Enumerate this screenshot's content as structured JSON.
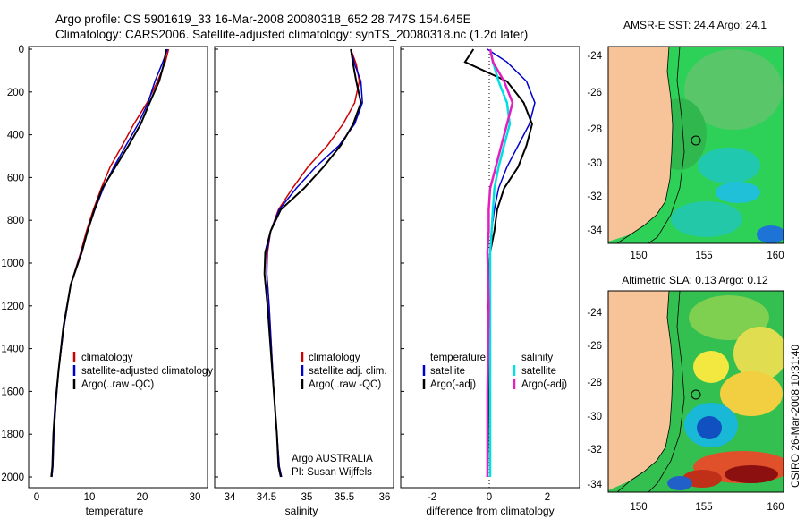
{
  "header": {
    "line1": "Argo profile: CS 5901619_33 16-Mar-2008 20080318_652 28.747S 154.645E",
    "line2": "Climatology: CARS2006. Satellite-adjusted climatology: synTS_20080318.nc (1.2d later)"
  },
  "side_label": "CSIRO 26-Mar-2008 10:31:40",
  "colors": {
    "climatology": "#cc0000",
    "satellite": "#0000cc",
    "argo": "#000000",
    "sal_sat": "#00e0e0",
    "sal_argo": "#e020c0",
    "land": "#f7c49a"
  },
  "panels": {
    "temp": {
      "xlabel": "temperature",
      "xticks": [
        "0",
        "10",
        "20",
        "30"
      ],
      "legend": [
        "climatology",
        "satellite-adjusted climatology",
        "Argo(..raw -QC)"
      ]
    },
    "sal": {
      "xlabel": "salinity",
      "xticks": [
        "34",
        "34.5",
        "35",
        "35.5",
        "36"
      ],
      "legend": [
        "climatology",
        "satellite adj. clim.",
        "Argo(..raw -QC)"
      ],
      "note1": "Argo AUSTRALIA",
      "note2": "PI: Susan Wijffels"
    },
    "diff": {
      "xlabel": "difference from climatology",
      "xticks": [
        "-2",
        "0",
        "2"
      ],
      "legend_t_head": "temperature",
      "legend_t": [
        "satellite",
        "Argo(-adj)"
      ],
      "legend_s_head": "salinity",
      "legend_s": [
        "satellite",
        "Argo(-adj)"
      ]
    },
    "depth_ticks": [
      "0",
      "200",
      "400",
      "600",
      "800",
      "1000",
      "1200",
      "1400",
      "1600",
      "1800",
      "2000"
    ]
  },
  "maps": {
    "sst_title": "AMSR-E SST: 24.4 Argo: 24.1",
    "sla_title": "Altimetric SLA: 0.13 Argo: 0.12",
    "lat_ticks": [
      "-24",
      "-26",
      "-28",
      "-30",
      "-32",
      "-34"
    ],
    "lon_ticks": [
      "150",
      "155",
      "160"
    ]
  },
  "chart_data": [
    {
      "type": "line",
      "title": "",
      "xlabel": "temperature",
      "ylabel": "",
      "xlim": [
        -2,
        32
      ],
      "ylim": [
        2050,
        0
      ],
      "series": [
        {
          "name": "climatology",
          "x": [
            24.6,
            24.0,
            22.5,
            20.5,
            18.0,
            15.8,
            13.5,
            11.8,
            10.3,
            9.0,
            7.9,
            6.0,
            4.7,
            3.7,
            3.2,
            2.8,
            2.6,
            2.4
          ],
          "y": [
            0,
            60,
            150,
            250,
            350,
            450,
            550,
            650,
            750,
            850,
            950,
            1100,
            1300,
            1500,
            1650,
            1800,
            1950,
            2000
          ]
        },
        {
          "name": "satellite-adjusted climatology",
          "x": [
            24.4,
            23.5,
            22.0,
            20.7,
            18.8,
            16.5,
            14.2,
            12.2,
            10.6,
            9.2,
            8.0,
            6.0,
            4.7,
            3.7,
            3.2,
            2.8,
            2.6,
            2.4
          ],
          "y": [
            0,
            60,
            150,
            250,
            350,
            450,
            550,
            650,
            750,
            850,
            950,
            1100,
            1300,
            1500,
            1650,
            1800,
            1950,
            2000
          ]
        },
        {
          "name": "Argo(..raw -QC)",
          "x": [
            24.1,
            23.8,
            22.8,
            21.0,
            19.3,
            17.0,
            14.5,
            12.0,
            10.5,
            9.2,
            8.1,
            6.0,
            4.6,
            3.7,
            3.1,
            2.7,
            2.5,
            2.3
          ],
          "y": [
            0,
            60,
            150,
            250,
            350,
            450,
            550,
            650,
            750,
            850,
            950,
            1100,
            1300,
            1500,
            1650,
            1800,
            1950,
            2000
          ]
        }
      ]
    },
    {
      "type": "line",
      "title": "",
      "xlabel": "salinity",
      "ylabel": "",
      "xlim": [
        33.8,
        36.1
      ],
      "ylim": [
        2050,
        0
      ],
      "series": [
        {
          "name": "climatology",
          "x": [
            35.55,
            35.62,
            35.66,
            35.6,
            35.45,
            35.25,
            35.0,
            34.8,
            34.62,
            34.52,
            34.48,
            34.47,
            34.5,
            34.53,
            34.56,
            34.6,
            34.63,
            34.66
          ],
          "y": [
            0,
            70,
            150,
            250,
            350,
            450,
            550,
            650,
            750,
            850,
            950,
            1050,
            1200,
            1400,
            1600,
            1800,
            1950,
            2000
          ]
        },
        {
          "name": "satellite adj. clim.",
          "x": [
            35.55,
            35.6,
            35.68,
            35.7,
            35.6,
            35.4,
            35.1,
            34.85,
            34.63,
            34.52,
            34.47,
            34.47,
            34.5,
            34.53,
            34.56,
            34.6,
            34.63,
            34.66
          ],
          "y": [
            0,
            70,
            150,
            250,
            350,
            450,
            550,
            650,
            750,
            850,
            950,
            1050,
            1200,
            1400,
            1600,
            1800,
            1950,
            2000
          ]
        },
        {
          "name": "Argo(..raw -QC)",
          "x": [
            35.55,
            35.58,
            35.62,
            35.68,
            35.58,
            35.42,
            35.2,
            34.95,
            34.65,
            34.52,
            34.45,
            34.44,
            34.48,
            34.52,
            34.56,
            34.6,
            34.62,
            34.65
          ],
          "y": [
            0,
            70,
            150,
            250,
            350,
            450,
            550,
            650,
            750,
            850,
            950,
            1050,
            1200,
            1400,
            1600,
            1800,
            1950,
            2000
          ]
        }
      ]
    },
    {
      "type": "line",
      "title": "",
      "xlabel": "difference from climatology",
      "ylabel": "",
      "xlim": [
        -3.2,
        3.2
      ],
      "ylim": [
        2050,
        0
      ],
      "series": [
        {
          "name": "temperature satellite",
          "x": [
            -0.1,
            0.6,
            1.3,
            1.6,
            1.4,
            1.0,
            0.6,
            0.3,
            0.15,
            0.05,
            0.0,
            0.0,
            0.0,
            0.0
          ],
          "y": [
            0,
            60,
            150,
            250,
            350,
            450,
            550,
            650,
            750,
            850,
            950,
            1200,
            1600,
            2000
          ]
        },
        {
          "name": "temperature Argo(-adj)",
          "x": [
            -0.6,
            -0.9,
            0.6,
            1.2,
            1.5,
            1.3,
            1.0,
            0.5,
            0.25,
            0.15,
            0.0,
            -0.1,
            -0.05,
            -0.1
          ],
          "y": [
            0,
            60,
            150,
            250,
            350,
            450,
            550,
            650,
            750,
            850,
            950,
            1200,
            1600,
            2000
          ]
        },
        {
          "name": "salinity satellite",
          "x": [
            0.0,
            0.1,
            0.3,
            0.6,
            0.7,
            0.5,
            0.3,
            0.15,
            0.1,
            0.05,
            0.0,
            0.0,
            0.0,
            0.0
          ],
          "y": [
            0,
            60,
            150,
            250,
            350,
            450,
            550,
            650,
            750,
            850,
            950,
            1200,
            1600,
            2000
          ]
        },
        {
          "name": "salinity Argo(-adj)",
          "x": [
            0.0,
            0.1,
            0.5,
            0.8,
            0.6,
            0.4,
            0.2,
            0.0,
            -0.05,
            -0.05,
            -0.1,
            -0.05,
            -0.1,
            -0.1
          ],
          "y": [
            0,
            60,
            150,
            250,
            350,
            450,
            550,
            650,
            750,
            850,
            950,
            1200,
            1600,
            2000
          ]
        }
      ]
    }
  ]
}
